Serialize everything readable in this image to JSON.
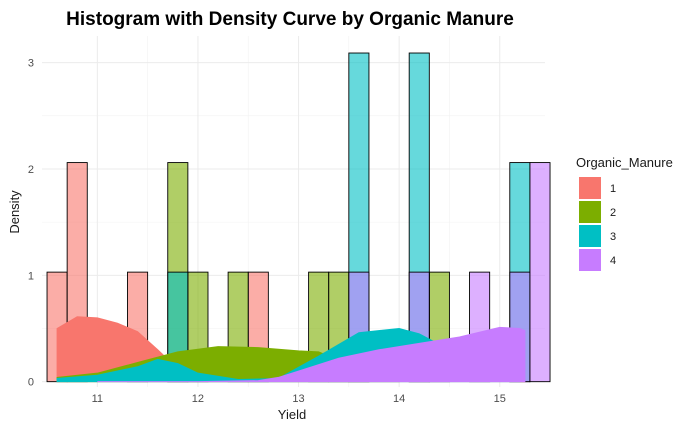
{
  "chart_data": {
    "type": "histogram",
    "title": "Histogram with Density Curve by Organic Manure",
    "xlabel": "Yield",
    "ylabel": "Density",
    "xlim": [
      10.45,
      15.45
    ],
    "ylim": [
      -0.05,
      3.25
    ],
    "x_ticks": [
      11,
      12,
      13,
      14,
      15
    ],
    "y_ticks": [
      0,
      1,
      2,
      3
    ],
    "bin_width": 0.2,
    "grid": true,
    "legend_title": "Organic_Manure",
    "legend_position": "right",
    "series": [
      {
        "name": "1",
        "color": "#F8766D",
        "bins": [
          [
            10.6,
            1.03
          ],
          [
            10.8,
            2.06
          ],
          [
            11.4,
            1.03
          ],
          [
            12.6,
            1.03
          ]
        ],
        "density": [
          [
            10.6,
            0.5
          ],
          [
            10.8,
            0.61
          ],
          [
            11.0,
            0.6
          ],
          [
            11.2,
            0.55
          ],
          [
            11.4,
            0.47
          ],
          [
            11.6,
            0.3
          ],
          [
            11.8,
            0.12
          ],
          [
            12.0,
            0.03
          ],
          [
            12.4,
            0.0
          ],
          [
            13.0,
            0.0
          ],
          [
            14.0,
            0.0
          ],
          [
            15.0,
            0.0
          ],
          [
            15.25,
            0.0
          ]
        ]
      },
      {
        "name": "2",
        "color": "#7CAE00",
        "bins": [
          [
            11.8,
            2.06
          ],
          [
            12.0,
            1.03
          ],
          [
            12.4,
            1.03
          ],
          [
            13.2,
            1.03
          ],
          [
            13.4,
            1.03
          ],
          [
            14.4,
            1.03
          ]
        ],
        "density": [
          [
            10.6,
            0.04
          ],
          [
            11.0,
            0.08
          ],
          [
            11.4,
            0.18
          ],
          [
            11.8,
            0.28
          ],
          [
            12.2,
            0.33
          ],
          [
            12.6,
            0.32
          ],
          [
            13.0,
            0.29
          ],
          [
            13.2,
            0.28
          ],
          [
            13.4,
            0.2
          ],
          [
            13.6,
            0.12
          ],
          [
            13.8,
            0.05
          ],
          [
            14.0,
            0.03
          ]
        ]
      },
      {
        "name": "3",
        "color": "#00BFC4",
        "bins": [
          [
            11.8,
            1.03
          ],
          [
            13.6,
            3.09
          ],
          [
            14.2,
            3.09
          ],
          [
            15.2,
            2.06
          ]
        ],
        "density": [
          [
            10.6,
            0.03
          ],
          [
            11.0,
            0.06
          ],
          [
            11.4,
            0.14
          ],
          [
            11.6,
            0.21
          ],
          [
            11.8,
            0.17
          ],
          [
            12.0,
            0.08
          ],
          [
            12.4,
            0.02
          ],
          [
            12.8,
            0.03
          ],
          [
            13.2,
            0.24
          ],
          [
            13.6,
            0.46
          ],
          [
            14.0,
            0.5
          ],
          [
            14.2,
            0.45
          ],
          [
            14.4,
            0.35
          ],
          [
            14.8,
            0.2
          ],
          [
            15.2,
            0.02
          ]
        ]
      },
      {
        "name": "4",
        "color": "#C77CFF",
        "bins": [
          [
            13.6,
            1.03
          ],
          [
            14.2,
            1.03
          ],
          [
            14.8,
            1.03
          ],
          [
            15.2,
            1.03
          ],
          [
            15.4,
            2.06
          ]
        ],
        "density": [
          [
            11.0,
            0.0
          ],
          [
            12.0,
            0.0
          ],
          [
            12.6,
            0.01
          ],
          [
            12.8,
            0.04
          ],
          [
            13.0,
            0.1
          ],
          [
            13.4,
            0.22
          ],
          [
            13.8,
            0.3
          ],
          [
            14.2,
            0.36
          ],
          [
            14.6,
            0.42
          ],
          [
            15.0,
            0.51
          ],
          [
            15.2,
            0.5
          ],
          [
            15.25,
            0.48
          ]
        ]
      }
    ]
  }
}
